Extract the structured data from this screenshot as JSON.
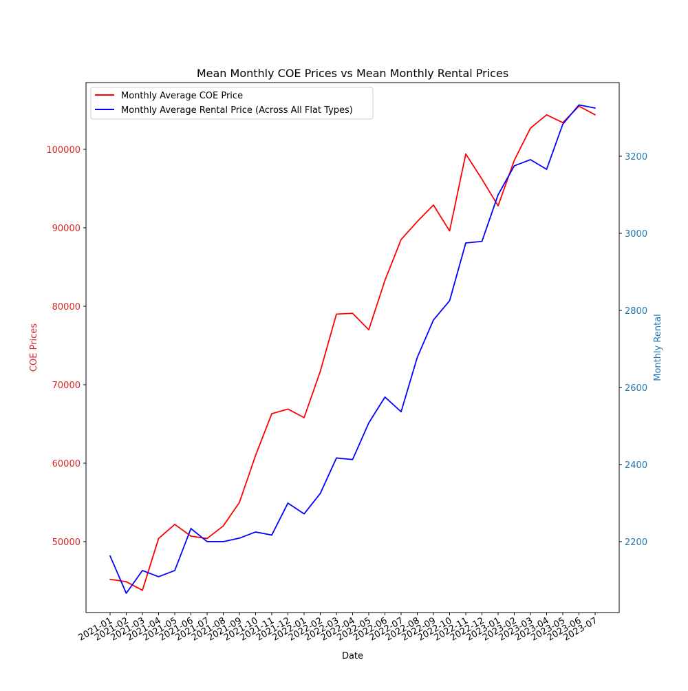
{
  "chart_data": {
    "type": "line",
    "title": "Mean Monthly COE Prices vs Mean Monthly Rental Prices",
    "xlabel": "Date",
    "ylabel_left": "COE Prices",
    "ylabel_right": "Monthly Rental",
    "categories": [
      "2021-01",
      "2021-02",
      "2021-03",
      "2021-04",
      "2021-05",
      "2021-06",
      "2021-07",
      "2021-08",
      "2021-09",
      "2021-10",
      "2021-11",
      "2021-12",
      "2022-01",
      "2022-02",
      "2022-03",
      "2022-04",
      "2022-05",
      "2022-06",
      "2022-07",
      "2022-08",
      "2022-09",
      "2022-10",
      "2022-11",
      "2022-12",
      "2023-01",
      "2023-02",
      "2023-03",
      "2023-04",
      "2023-05",
      "2023-06",
      "2023-07"
    ],
    "ylim_left": [
      40966,
      108504
    ],
    "ylim_right": [
      2016,
      3391
    ],
    "yticks_left": [
      50000,
      60000,
      70000,
      80000,
      90000,
      100000
    ],
    "yticks_right": [
      2200,
      2400,
      2600,
      2800,
      3000,
      3200
    ],
    "legend_position": "upper-left",
    "series": [
      {
        "name": "Monthly Average COE Price",
        "axis": "left",
        "color": "#ff0000",
        "values": [
          45200,
          44900,
          43800,
          50400,
          52200,
          50700,
          50400,
          52000,
          55000,
          61000,
          66300,
          66900,
          65800,
          71700,
          79000,
          79100,
          77000,
          83300,
          88500,
          90800,
          92900,
          89600,
          99400,
          96200,
          92800,
          98600,
          102700,
          104400,
          103400,
          105500,
          104400
        ]
      },
      {
        "name": "Monthly Average Rental Price (Across All Flat Types)",
        "axis": "right",
        "color": "#0000ff",
        "values": [
          2163,
          2066,
          2125,
          2109,
          2125,
          2234,
          2200,
          2200,
          2209,
          2225,
          2217,
          2300,
          2272,
          2325,
          2417,
          2413,
          2508,
          2575,
          2537,
          2678,
          2775,
          2825,
          2975,
          2979,
          3100,
          3175,
          3191,
          3166,
          3283,
          3333,
          3325
        ]
      }
    ]
  },
  "colors": {
    "left_axis": "#d62728",
    "right_axis": "#1f77b4"
  }
}
